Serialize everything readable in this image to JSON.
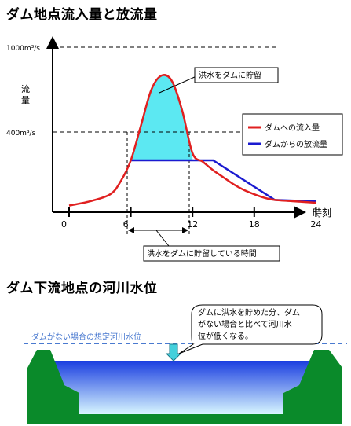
{
  "heading_top": "ダム地点流入量と放流量",
  "heading_bottom": "ダム下流地点の河川水位",
  "chart_data": {
    "type": "line",
    "title": "ダム地点流入量と放流量",
    "xlabel": "時刻",
    "ylabel": "流量",
    "x_ticks": [
      "0",
      "6",
      "12",
      "18",
      "24"
    ],
    "y_ticks": [
      "400m³/s",
      "1000m³/s"
    ],
    "y_tick_values": [
      400,
      1000
    ],
    "xlim": [
      -2,
      26
    ],
    "series": [
      {
        "name": "ダムへの流入量",
        "color": "#e02020",
        "x": [
          0,
          2,
          4,
          5,
          6,
          7,
          8,
          9,
          10,
          11,
          12,
          13,
          14,
          15,
          16,
          17,
          18,
          19,
          20,
          22,
          24
        ],
        "y": [
          80,
          110,
          160,
          250,
          400,
          650,
          900,
          1000,
          960,
          750,
          450,
          390,
          330,
          280,
          230,
          190,
          160,
          135,
          120,
          110,
          100
        ]
      },
      {
        "name": "ダムからの放流量",
        "color": "#1a1ad0",
        "x": [
          6,
          12,
          14,
          20,
          24
        ],
        "y": [
          400,
          400,
          400,
          120,
          110
        ]
      }
    ],
    "annotations": {
      "storage": "洪水をダムに貯留",
      "period": "洪水をダムに貯留している時間"
    },
    "legend_position": "right"
  },
  "river": {
    "water_level_label": "ダムがない場合の想定河川水位",
    "callout": [
      "ダムに洪水を貯めた分、ダム",
      "がない場合と比べて河川水",
      "位が低くなる。"
    ],
    "colors": {
      "bank": "#0a8a2a",
      "water_top": "#1a3ee0",
      "water_bottom": "#d8f6ff",
      "arrow": "#44d0dc",
      "dashed": "#4a7ad0"
    }
  }
}
